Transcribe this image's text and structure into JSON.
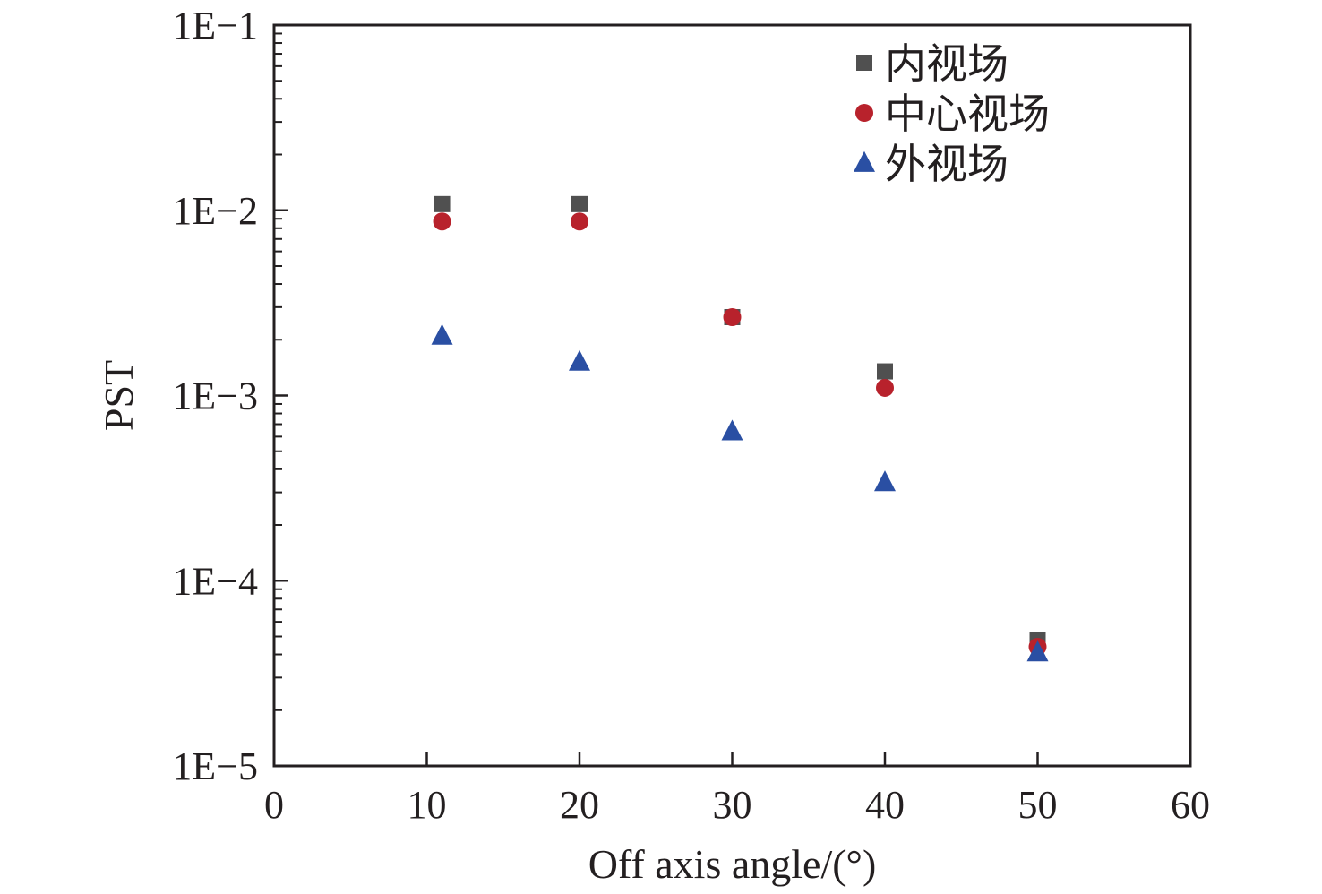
{
  "chart_data": {
    "type": "scatter",
    "title": "",
    "xlabel": "Off axis angle/(°)",
    "ylabel": "PST",
    "xlim": [
      0,
      60
    ],
    "ylim": [
      1e-05,
      0.1
    ],
    "yscale": "log",
    "x_ticks": [
      0,
      10,
      20,
      30,
      40,
      50,
      60
    ],
    "x_tick_labels": [
      "0",
      "10",
      "20",
      "30",
      "40",
      "50",
      "60"
    ],
    "y_ticks": [
      1e-05,
      0.0001,
      0.001,
      0.01,
      0.1
    ],
    "y_tick_labels": [
      "1E−5",
      "1E−4",
      "1E−3",
      "1E−2",
      "1E−1"
    ],
    "grid": false,
    "legend_position": "top-right",
    "series": [
      {
        "name": "内视场",
        "marker": "square",
        "color": "#505050",
        "x": [
          11,
          20,
          30,
          40,
          50
        ],
        "y": [
          0.0108,
          0.0108,
          0.00265,
          0.00135,
          4.8e-05
        ]
      },
      {
        "name": "中心视场",
        "marker": "circle",
        "color": "#b8222c",
        "x": [
          11,
          20,
          30,
          40,
          50
        ],
        "y": [
          0.0087,
          0.0087,
          0.00265,
          0.0011,
          4.4e-05
        ]
      },
      {
        "name": "外视场",
        "marker": "triangle",
        "color": "#2a4fa3",
        "x": [
          11,
          20,
          30,
          40,
          50
        ],
        "y": [
          0.0021,
          0.00152,
          0.00064,
          0.00034,
          4.1e-05
        ]
      }
    ]
  }
}
